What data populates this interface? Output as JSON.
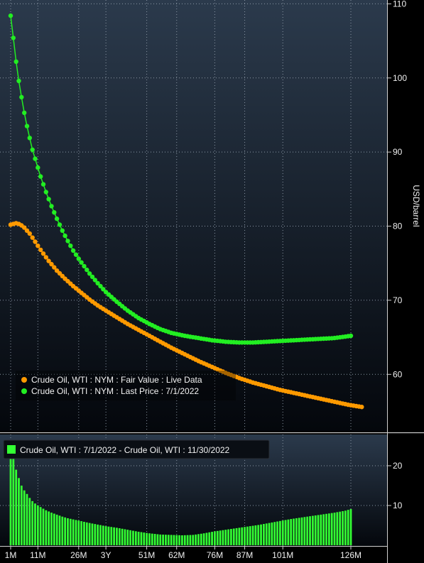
{
  "chart_data": [
    {
      "type": "line",
      "ylabel": "USD/barrel",
      "ylim": [
        51.5,
        111
      ],
      "yticks": [
        60,
        70,
        80,
        90,
        100,
        110
      ],
      "xlim": [
        0,
        132
      ],
      "grid": true,
      "legend_position": "bottom-left",
      "series": [
        {
          "name": "Crude Oil, WTI : NYM : Fair Value : Live Data",
          "color": "#ff9a00",
          "x": [
            1,
            2,
            3,
            4,
            5,
            6,
            8,
            10,
            12,
            15,
            18,
            21,
            24,
            27,
            30,
            33,
            36,
            40,
            44,
            48,
            52,
            56,
            60,
            65,
            70,
            75,
            80,
            85,
            90,
            95,
            100,
            105,
            110,
            115,
            120,
            125,
            130
          ],
          "y": [
            80.2,
            80.3,
            80.4,
            80.3,
            80.1,
            79.8,
            79.0,
            77.9,
            76.8,
            75.3,
            74.0,
            72.9,
            71.9,
            71.0,
            70.1,
            69.3,
            68.6,
            67.7,
            66.8,
            66.0,
            65.2,
            64.4,
            63.6,
            62.7,
            61.8,
            61.0,
            60.2,
            59.5,
            58.9,
            58.4,
            57.9,
            57.5,
            57.1,
            56.7,
            56.3,
            55.9,
            55.6
          ]
        },
        {
          "name": "Crude Oil, WTI : NYM : Last Price : 7/1/2022",
          "color": "#22ee22",
          "x": [
            1,
            2,
            3,
            4,
            5,
            6,
            7,
            8,
            9,
            10,
            12,
            14,
            16,
            18,
            20,
            22,
            24,
            26,
            28,
            30,
            33,
            36,
            40,
            44,
            48,
            52,
            56,
            60,
            65,
            70,
            75,
            80,
            85,
            90,
            95,
            100,
            105,
            110,
            115,
            120,
            126
          ],
          "y": [
            108.4,
            105.4,
            102.2,
            99.6,
            97.4,
            95.3,
            93.5,
            91.9,
            90.3,
            89.1,
            86.7,
            84.6,
            82.7,
            81.0,
            79.4,
            78.0,
            76.7,
            75.6,
            74.6,
            73.6,
            72.3,
            71.1,
            69.8,
            68.6,
            67.6,
            66.8,
            66.1,
            65.6,
            65.2,
            64.9,
            64.6,
            64.4,
            64.3,
            64.3,
            64.4,
            64.5,
            64.6,
            64.7,
            64.8,
            64.9,
            65.2
          ]
        }
      ]
    },
    {
      "type": "bar",
      "ylim": [
        0,
        26
      ],
      "yticks": [
        10,
        20
      ],
      "legend_position": "top-left",
      "series": [
        {
          "name": "Crude Oil, WTI : 7/1/2022 - Crude Oil, WTI : 11/30/2022",
          "color": "#33ff33",
          "x": [
            1,
            2,
            3,
            4,
            5,
            6,
            7,
            8,
            9,
            10,
            12,
            14,
            16,
            18,
            20,
            22,
            24,
            26,
            28,
            30,
            33,
            36,
            40,
            44,
            48,
            52,
            56,
            60,
            64,
            68,
            72,
            76,
            80,
            84,
            88,
            92,
            96,
            100,
            104,
            108,
            112,
            116,
            120,
            124,
            126
          ],
          "values": [
            24.5,
            21.8,
            19.0,
            16.9,
            15.0,
            13.8,
            12.9,
            11.9,
            11.1,
            10.5,
            9.6,
            8.8,
            8.2,
            7.7,
            7.2,
            6.8,
            6.5,
            6.2,
            5.9,
            5.6,
            5.2,
            4.8,
            4.4,
            3.9,
            3.4,
            3.0,
            2.7,
            2.6,
            2.5,
            2.6,
            3.0,
            3.5,
            3.9,
            4.3,
            4.7,
            5.1,
            5.6,
            6.1,
            6.6,
            7.0,
            7.4,
            7.8,
            8.2,
            8.7,
            9.1
          ]
        }
      ]
    }
  ],
  "x_axis": {
    "ticks": [
      {
        "label": "1M",
        "x": 1
      },
      {
        "label": "11M",
        "x": 11
      },
      {
        "label": "26M",
        "x": 26
      },
      {
        "label": "3Y",
        "x": 36
      },
      {
        "label": "51M",
        "x": 51
      },
      {
        "label": "62M",
        "x": 62
      },
      {
        "label": "76M",
        "x": 76
      },
      {
        "label": "87M",
        "x": 87
      },
      {
        "label": "101M",
        "x": 101
      },
      {
        "label": "126M",
        "x": 126
      }
    ]
  },
  "colors": {
    "background": "#000000",
    "panel_top": "#2b3a4c",
    "panel_bottom": "#04070c",
    "grid": "#8a96a4",
    "separator": "#c8c8c8"
  }
}
